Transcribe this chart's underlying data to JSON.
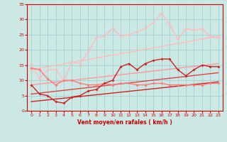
{
  "xlabel": "Vent moyen/en rafales ( km/h )",
  "xlim": [
    -0.5,
    23.5
  ],
  "ylim": [
    0,
    35
  ],
  "xticks": [
    0,
    1,
    2,
    3,
    4,
    5,
    6,
    7,
    8,
    9,
    10,
    11,
    12,
    13,
    14,
    15,
    16,
    17,
    18,
    19,
    20,
    21,
    22,
    23
  ],
  "yticks": [
    0,
    5,
    10,
    15,
    20,
    25,
    30,
    35
  ],
  "bg_color": "#cce8e4",
  "grid_color": "#99cccc",
  "line_upper1": {
    "x": [
      0,
      23
    ],
    "y": [
      13.5,
      24.5
    ],
    "color": "#ffbbbb",
    "lw": 1.0
  },
  "line_upper2": {
    "x": [
      0,
      23
    ],
    "y": [
      8.5,
      15.5
    ],
    "color": "#ff9999",
    "lw": 1.0
  },
  "line_lower1": {
    "x": [
      0,
      23
    ],
    "y": [
      5.5,
      12.5
    ],
    "color": "#dd4444",
    "lw": 1.0
  },
  "line_lower2": {
    "x": [
      0,
      23
    ],
    "y": [
      3.0,
      9.5
    ],
    "color": "#cc2222",
    "lw": 1.0
  },
  "curve_light": {
    "x": [
      0,
      1,
      2,
      3,
      4,
      5,
      6,
      7,
      8,
      9,
      10,
      11,
      12,
      13,
      14,
      15,
      16,
      17,
      18,
      19,
      20,
      21,
      22,
      23
    ],
    "y": [
      15.5,
      10.5,
      13.5,
      13.5,
      10.0,
      16.0,
      15.5,
      19.5,
      24.0,
      24.5,
      27.0,
      24.5,
      25.0,
      26.0,
      27.0,
      29.0,
      32.0,
      28.5,
      23.5,
      27.0,
      26.5,
      27.0,
      24.5,
      24.0
    ],
    "color": "#ffbbbb",
    "lw": 1.0,
    "marker": "D",
    "ms": 2.0
  },
  "curve_mid": {
    "x": [
      0,
      1,
      2,
      3,
      4,
      5,
      6,
      7,
      8,
      9,
      10,
      11,
      12,
      13,
      14,
      15,
      16,
      17,
      18,
      19,
      20,
      21,
      22,
      23
    ],
    "y": [
      14.0,
      13.5,
      10.5,
      8.5,
      10.0,
      10.0,
      9.0,
      8.5,
      8.5,
      9.0,
      8.5,
      9.0,
      9.0,
      8.5,
      8.5,
      9.0,
      9.0,
      8.5,
      8.5,
      8.5,
      8.5,
      8.5,
      9.0,
      9.0
    ],
    "color": "#ff7777",
    "lw": 1.0,
    "marker": "D",
    "ms": 2.0
  },
  "curve_dark": {
    "x": [
      0,
      1,
      2,
      3,
      4,
      5,
      6,
      7,
      8,
      9,
      10,
      11,
      12,
      13,
      14,
      15,
      16,
      17,
      18,
      19,
      20,
      21,
      22,
      23
    ],
    "y": [
      8.5,
      5.5,
      5.0,
      3.0,
      2.5,
      4.5,
      5.0,
      6.5,
      7.0,
      9.0,
      10.0,
      14.5,
      15.5,
      13.5,
      15.5,
      16.5,
      17.0,
      17.0,
      13.5,
      11.5,
      13.5,
      15.0,
      14.5,
      14.5
    ],
    "color": "#cc2222",
    "lw": 1.0,
    "marker": "D",
    "ms": 2.0
  }
}
